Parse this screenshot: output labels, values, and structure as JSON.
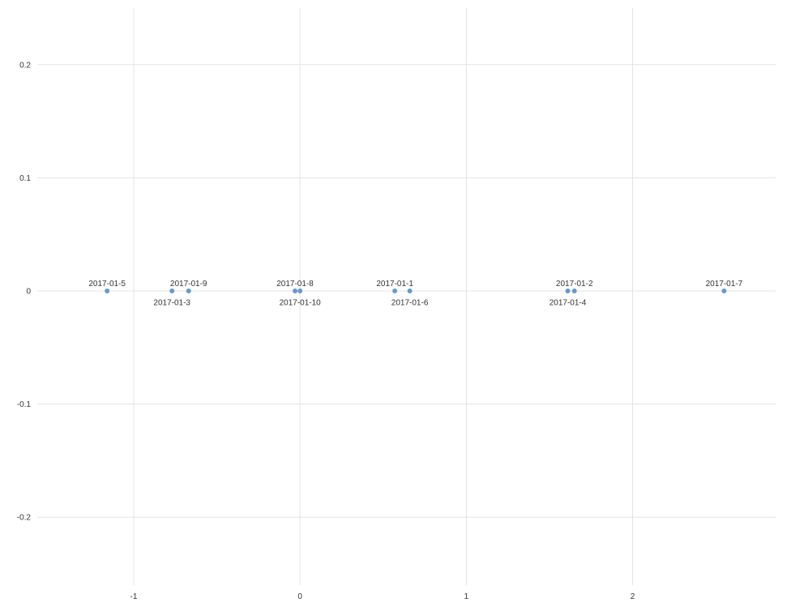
{
  "chart_data": {
    "type": "scatter",
    "title": "",
    "xlabel": "",
    "ylabel": "",
    "xlim": [
      -1.58,
      2.86
    ],
    "ylim": [
      -0.26,
      0.25
    ],
    "x_ticks": [
      -1,
      0,
      1,
      2
    ],
    "y_ticks": [
      0.2,
      0.1,
      0,
      -0.1,
      -0.2
    ],
    "x_tick_labels": [
      "-1",
      "0",
      "1",
      "2"
    ],
    "y_tick_labels": [
      "0.2",
      "0.1",
      "0",
      "-0.1",
      "-0.2"
    ],
    "grid": true,
    "legend": "none",
    "color": "#6699cc",
    "points": [
      {
        "label": "2017-01-5",
        "x": -1.16,
        "y": 0,
        "label_position": "above"
      },
      {
        "label": "2017-01-3",
        "x": -0.77,
        "y": 0,
        "label_position": "below"
      },
      {
        "label": "2017-01-9",
        "x": -0.67,
        "y": 0,
        "label_position": "above"
      },
      {
        "label": "2017-01-8",
        "x": -0.03,
        "y": 0,
        "label_position": "above"
      },
      {
        "label": "2017-01-10",
        "x": 0.0,
        "y": 0,
        "label_position": "below"
      },
      {
        "label": "2017-01-1",
        "x": 0.57,
        "y": 0,
        "label_position": "above"
      },
      {
        "label": "2017-01-6",
        "x": 0.66,
        "y": 0,
        "label_position": "below"
      },
      {
        "label": "2017-01-4",
        "x": 1.61,
        "y": 0,
        "label_position": "below"
      },
      {
        "label": "2017-01-2",
        "x": 1.65,
        "y": 0,
        "label_position": "above"
      },
      {
        "label": "2017-01-7",
        "x": 2.55,
        "y": 0,
        "label_position": "above"
      }
    ]
  }
}
